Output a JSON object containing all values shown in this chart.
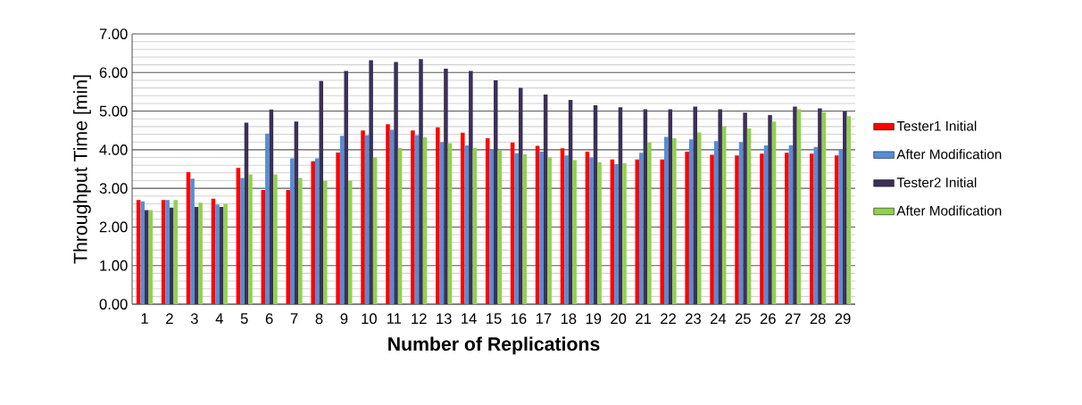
{
  "chart_data": {
    "type": "bar",
    "xlabel": "Number of Replications",
    "ylabel": "Throughput Time [min]",
    "categories": [
      "1",
      "2",
      "3",
      "4",
      "5",
      "6",
      "7",
      "8",
      "9",
      "10",
      "11",
      "12",
      "13",
      "14",
      "15",
      "16",
      "17",
      "18",
      "19",
      "20",
      "21",
      "22",
      "23",
      "24",
      "25",
      "26",
      "27",
      "28",
      "29"
    ],
    "series": [
      {
        "name": "Tester1 Initial",
        "color": "#ff0000",
        "values": [
          2.7,
          2.7,
          3.42,
          2.73,
          3.53,
          2.96,
          2.96,
          3.7,
          3.93,
          4.5,
          4.66,
          4.5,
          4.58,
          4.44,
          4.3,
          4.19,
          4.1,
          4.04,
          3.95,
          3.75,
          3.75,
          3.75,
          3.95,
          3.87,
          3.85,
          3.9,
          3.92,
          3.9,
          3.85
        ]
      },
      {
        "name": "After Modification",
        "color": "#558ed5",
        "values": [
          2.66,
          2.7,
          3.25,
          2.58,
          3.27,
          4.42,
          3.78,
          3.78,
          4.36,
          4.38,
          4.52,
          4.38,
          4.2,
          4.11,
          4.0,
          3.91,
          3.95,
          3.85,
          3.8,
          3.63,
          3.92,
          4.33,
          4.27,
          4.22,
          4.2,
          4.11,
          4.12,
          4.07,
          4.0
        ]
      },
      {
        "name": "Tester2 Initial",
        "color": "#3b3058",
        "values": [
          2.44,
          2.5,
          2.52,
          2.52,
          4.7,
          5.04,
          4.73,
          5.78,
          6.04,
          6.32,
          6.27,
          6.35,
          6.1,
          6.04,
          5.8,
          5.6,
          5.43,
          5.29,
          5.15,
          5.1,
          5.05,
          5.05,
          5.12,
          5.05,
          4.96,
          4.9,
          5.12,
          5.07,
          4.99
        ]
      },
      {
        "name": "After Modification",
        "color": "#92d050",
        "values": [
          2.44,
          2.7,
          2.63,
          2.6,
          3.36,
          3.36,
          3.27,
          3.19,
          3.2,
          3.8,
          4.05,
          4.32,
          4.17,
          4.05,
          3.98,
          3.88,
          3.8,
          3.73,
          3.68,
          3.65,
          4.19,
          4.3,
          4.45,
          4.61,
          4.55,
          4.73,
          5.05,
          4.97,
          4.87
        ]
      }
    ],
    "ylim": [
      0,
      7
    ],
    "yticks": [
      {
        "value": 0,
        "label": "0.00"
      },
      {
        "value": 1,
        "label": "1.00"
      },
      {
        "value": 2,
        "label": "2.00"
      },
      {
        "value": 3,
        "label": "3.00"
      },
      {
        "value": 4,
        "label": "4.00"
      },
      {
        "value": 5,
        "label": "5.00"
      },
      {
        "value": 6,
        "label": "6.00"
      },
      {
        "value": 7,
        "label": "7.00"
      }
    ],
    "grid": "y",
    "legend": "right"
  }
}
